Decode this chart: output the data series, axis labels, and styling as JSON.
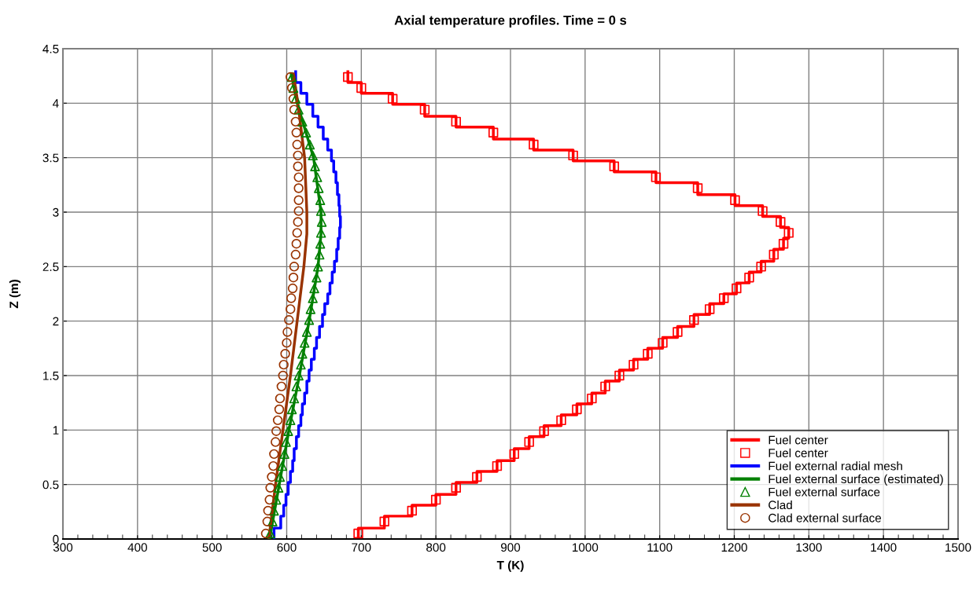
{
  "chart_data": {
    "type": "line",
    "title": "Axial temperature profiles. Time = 0 s",
    "xlabel": "T (K)",
    "ylabel": "Z (m)",
    "xlim": [
      300,
      1500
    ],
    "xticks": [
      300,
      400,
      500,
      600,
      700,
      800,
      900,
      1000,
      1100,
      1200,
      1300,
      1400,
      1500
    ],
    "ylim": [
      0,
      4.5
    ],
    "yticks": [
      0,
      0.5,
      1,
      1.5,
      2,
      2.5,
      3,
      3.5,
      4,
      4.5
    ],
    "grid": true,
    "legend": "bottom right",
    "series": [
      {
        "name": "Fuel center",
        "type": "line",
        "color": "#ff0000",
        "x": [
          696,
          696,
          731,
          731,
          768,
          768,
          800,
          800,
          827,
          827,
          855,
          855,
          882,
          882,
          905,
          905,
          925,
          925,
          945,
          945,
          968,
          968,
          989,
          989,
          1009,
          1009,
          1027,
          1027,
          1046,
          1046,
          1065,
          1065,
          1084,
          1084,
          1104,
          1104,
          1124,
          1124,
          1146,
          1146,
          1167,
          1167,
          1186,
          1186,
          1203,
          1203,
          1220,
          1220,
          1236,
          1236,
          1253,
          1253,
          1266,
          1266,
          1273,
          1273,
          1262,
          1262,
          1238,
          1238,
          1201,
          1201,
          1151,
          1151,
          1095,
          1095,
          1039,
          1039,
          984,
          984,
          931,
          931,
          877,
          877,
          827,
          827,
          785,
          785,
          742,
          742,
          700,
          700,
          682,
          682
        ],
        "values": [
          0,
          0.1,
          0.1,
          0.21,
          0.21,
          0.31,
          0.31,
          0.41,
          0.41,
          0.52,
          0.52,
          0.62,
          0.62,
          0.72,
          0.72,
          0.83,
          0.83,
          0.94,
          0.94,
          1.04,
          1.04,
          1.14,
          1.14,
          1.24,
          1.24,
          1.34,
          1.34,
          1.45,
          1.45,
          1.55,
          1.55,
          1.65,
          1.65,
          1.75,
          1.75,
          1.85,
          1.85,
          1.95,
          1.95,
          2.06,
          2.06,
          2.16,
          2.16,
          2.25,
          2.25,
          2.35,
          2.35,
          2.45,
          2.45,
          2.55,
          2.55,
          2.66,
          2.66,
          2.76,
          2.76,
          2.86,
          2.86,
          2.96,
          2.96,
          3.06,
          3.06,
          3.16,
          3.16,
          3.27,
          3.27,
          3.37,
          3.37,
          3.47,
          3.47,
          3.57,
          3.57,
          3.67,
          3.67,
          3.78,
          3.78,
          3.88,
          3.88,
          3.99,
          3.99,
          4.09,
          4.09,
          4.19,
          4.19,
          4.29
        ]
      },
      {
        "name": "Fuel center",
        "type": "scatter",
        "color": "#ff0000",
        "marker": "square",
        "x": [
          696,
          731,
          768,
          800,
          827,
          855,
          882,
          905,
          925,
          945,
          968,
          989,
          1009,
          1027,
          1046,
          1065,
          1084,
          1104,
          1124,
          1146,
          1167,
          1186,
          1203,
          1220,
          1236,
          1253,
          1266,
          1273,
          1262,
          1238,
          1201,
          1151,
          1095,
          1039,
          984,
          931,
          877,
          827,
          785,
          742,
          700,
          682
        ],
        "values": [
          0.05,
          0.16,
          0.26,
          0.36,
          0.47,
          0.57,
          0.67,
          0.78,
          0.89,
          0.99,
          1.09,
          1.19,
          1.29,
          1.4,
          1.5,
          1.6,
          1.7,
          1.8,
          1.9,
          2.01,
          2.11,
          2.21,
          2.3,
          2.4,
          2.5,
          2.61,
          2.71,
          2.81,
          2.91,
          3.01,
          3.11,
          3.22,
          3.32,
          3.42,
          3.52,
          3.62,
          3.73,
          3.83,
          3.94,
          4.04,
          4.14,
          4.24
        ]
      },
      {
        "name": "Fuel external radial mesh",
        "type": "line",
        "color": "#0000ff",
        "x": [
          583,
          583,
          592,
          592,
          596,
          596,
          599,
          599,
          602,
          602,
          605,
          605,
          608,
          608,
          610,
          610,
          613,
          613,
          616,
          616,
          619,
          619,
          621,
          621,
          624,
          624,
          627,
          627,
          630,
          630,
          633,
          633,
          637,
          637,
          640,
          640,
          644,
          644,
          648,
          648,
          651,
          651,
          655,
          655,
          658,
          658,
          661,
          661,
          664,
          664,
          667,
          667,
          669,
          669,
          671,
          671,
          672,
          672,
          671,
          671,
          670,
          670,
          668,
          668,
          666,
          666,
          663,
          663,
          660,
          660,
          655,
          655,
          649,
          649,
          642,
          642,
          635,
          635,
          627,
          627,
          619,
          619,
          612,
          612
        ],
        "values": [
          0,
          0.1,
          0.1,
          0.21,
          0.21,
          0.31,
          0.31,
          0.41,
          0.41,
          0.52,
          0.52,
          0.62,
          0.62,
          0.72,
          0.72,
          0.83,
          0.83,
          0.94,
          0.94,
          1.04,
          1.04,
          1.14,
          1.14,
          1.24,
          1.24,
          1.34,
          1.34,
          1.45,
          1.45,
          1.55,
          1.55,
          1.65,
          1.65,
          1.75,
          1.75,
          1.85,
          1.85,
          1.95,
          1.95,
          2.06,
          2.06,
          2.16,
          2.16,
          2.25,
          2.25,
          2.35,
          2.35,
          2.45,
          2.45,
          2.55,
          2.55,
          2.66,
          2.66,
          2.76,
          2.76,
          2.86,
          2.86,
          2.96,
          2.96,
          3.06,
          3.06,
          3.16,
          3.16,
          3.27,
          3.27,
          3.37,
          3.37,
          3.47,
          3.47,
          3.57,
          3.57,
          3.67,
          3.67,
          3.78,
          3.78,
          3.88,
          3.88,
          3.99,
          3.99,
          4.09,
          4.09,
          4.19,
          4.19,
          4.29
        ]
      },
      {
        "name": "Fuel external surface (estimated)",
        "type": "line",
        "color": "#008000",
        "x": [
          577,
          590,
          603,
          617,
          630,
          642,
          646,
          646,
          636,
          614,
          606
        ],
        "values": [
          0,
          0.5,
          1,
          1.5,
          2,
          2.5,
          2.8,
          3.0,
          3.5,
          4.0,
          4.27
        ]
      },
      {
        "name": "Fuel external surface",
        "type": "scatter",
        "color": "#008000",
        "marker": "triangle",
        "x": [
          578,
          581,
          583,
          586,
          589,
          591,
          594,
          597,
          599,
          602,
          605,
          607,
          610,
          613,
          616,
          619,
          621,
          624,
          627,
          630,
          632,
          635,
          637,
          640,
          642,
          644,
          645,
          646,
          647,
          646,
          645,
          643,
          641,
          638,
          635,
          631,
          626,
          621,
          616,
          612,
          609,
          607
        ],
        "values": [
          0.05,
          0.16,
          0.26,
          0.36,
          0.47,
          0.57,
          0.67,
          0.78,
          0.89,
          0.99,
          1.09,
          1.19,
          1.29,
          1.4,
          1.5,
          1.6,
          1.7,
          1.8,
          1.9,
          2.01,
          2.11,
          2.21,
          2.3,
          2.4,
          2.5,
          2.61,
          2.71,
          2.81,
          2.91,
          3.01,
          3.11,
          3.22,
          3.32,
          3.42,
          3.52,
          3.62,
          3.73,
          3.83,
          3.94,
          4.04,
          4.14,
          4.24
        ]
      },
      {
        "name": "Clad",
        "type": "line",
        "color": "#993300",
        "x": [
          576,
          585,
          595,
          605,
          614,
          623,
          627,
          627,
          624,
          615,
          609
        ],
        "values": [
          0,
          0.5,
          1,
          1.5,
          2,
          2.5,
          2.8,
          3.0,
          3.5,
          4.0,
          4.27
        ]
      },
      {
        "name": "Clad external surface",
        "type": "scatter",
        "color": "#993300",
        "marker": "circle",
        "x": [
          572,
          574,
          575,
          577,
          578,
          580,
          582,
          583,
          585,
          586,
          588,
          590,
          591,
          593,
          595,
          596,
          598,
          600,
          601,
          603,
          605,
          606,
          608,
          609,
          610,
          612,
          613,
          614,
          615,
          616,
          616,
          616,
          616,
          615,
          615,
          614,
          613,
          612,
          610,
          609,
          607,
          605
        ],
        "values": [
          0.05,
          0.16,
          0.26,
          0.36,
          0.47,
          0.57,
          0.67,
          0.78,
          0.89,
          0.99,
          1.09,
          1.19,
          1.29,
          1.4,
          1.5,
          1.6,
          1.7,
          1.8,
          1.9,
          2.01,
          2.11,
          2.21,
          2.3,
          2.4,
          2.5,
          2.61,
          2.71,
          2.81,
          2.91,
          3.01,
          3.11,
          3.22,
          3.32,
          3.42,
          3.52,
          3.62,
          3.73,
          3.83,
          3.94,
          4.04,
          4.14,
          4.24
        ]
      }
    ]
  }
}
